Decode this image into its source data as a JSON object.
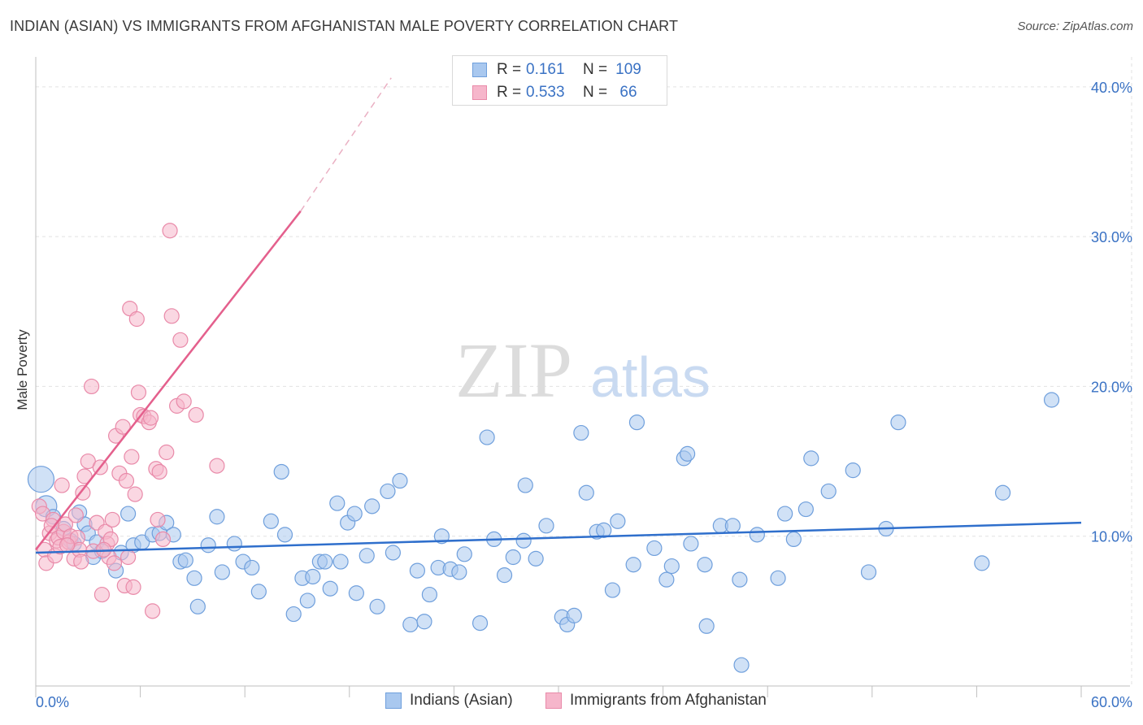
{
  "title": "INDIAN (ASIAN) VS IMMIGRANTS FROM AFGHANISTAN MALE POVERTY CORRELATION CHART",
  "source": "Source: ZipAtlas.com",
  "watermark": {
    "zip": "ZIP",
    "atlas": "atlas"
  },
  "legend_top": [
    {
      "r_label": "R =",
      "r_value": "0.161",
      "n_label": "N =",
      "n_value": "109"
    },
    {
      "r_label": "R =",
      "r_value": "0.533",
      "n_label": "N =",
      "n_value": "66"
    }
  ],
  "colors": {
    "blue_fill": "#a9c8ef",
    "blue_stroke": "#6f9fdc",
    "blue_line": "#2f6fcc",
    "pink_fill": "#f6b6cb",
    "pink_stroke": "#e98aa9",
    "pink_line": "#e4608d",
    "axis_text": "#3a72c4",
    "grid": "#e2e2e2"
  },
  "chart_data": {
    "type": "scatter",
    "title": "INDIAN (ASIAN) VS IMMIGRANTS FROM AFGHANISTAN MALE POVERTY CORRELATION CHART",
    "xlabel": "",
    "ylabel": "Male Poverty",
    "xlim": [
      0,
      60
    ],
    "ylim": [
      0,
      42
    ],
    "x_tick_labels": [
      "0.0%",
      "60.0%"
    ],
    "y_ticks": [
      10,
      20,
      30,
      40
    ],
    "y_tick_labels": [
      "10.0%",
      "20.0%",
      "30.0%",
      "40.0%"
    ],
    "grid": true,
    "legend_placement": "top-center",
    "series": [
      {
        "name": "Indians (Asian)",
        "color": "blue",
        "trend": {
          "x": [
            0,
            60
          ],
          "y": [
            8.9,
            10.9
          ],
          "dashed_extension": false
        },
        "points": [
          [
            0.3,
            13.8
          ],
          [
            0.6,
            12
          ],
          [
            1,
            11.3
          ],
          [
            1.6,
            10.5
          ],
          [
            2,
            9.7
          ],
          [
            2.2,
            9.5
          ],
          [
            2.5,
            11.6
          ],
          [
            2.8,
            10.8
          ],
          [
            3,
            10.2
          ],
          [
            3.3,
            8.6
          ],
          [
            3.5,
            9.6
          ],
          [
            3.8,
            9
          ],
          [
            4.6,
            7.7
          ],
          [
            4.9,
            8.9
          ],
          [
            5.3,
            11.5
          ],
          [
            5.6,
            9.4
          ],
          [
            6.1,
            9.6
          ],
          [
            6.7,
            10.1
          ],
          [
            7.1,
            10.2
          ],
          [
            7.5,
            10.9
          ],
          [
            7.9,
            10.1
          ],
          [
            8.3,
            8.3
          ],
          [
            8.6,
            8.4
          ],
          [
            9.1,
            7.2
          ],
          [
            9.3,
            5.3
          ],
          [
            9.9,
            9.4
          ],
          [
            10.4,
            11.3
          ],
          [
            10.7,
            7.6
          ],
          [
            11.4,
            9.5
          ],
          [
            11.9,
            8.3
          ],
          [
            12.4,
            7.9
          ],
          [
            12.8,
            6.3
          ],
          [
            13.5,
            11
          ],
          [
            14.1,
            14.3
          ],
          [
            14.3,
            10.1
          ],
          [
            14.8,
            4.8
          ],
          [
            15.3,
            7.2
          ],
          [
            15.6,
            5.7
          ],
          [
            15.9,
            7.3
          ],
          [
            16.3,
            8.3
          ],
          [
            16.6,
            8.3
          ],
          [
            16.9,
            6.5
          ],
          [
            17.3,
            12.2
          ],
          [
            17.5,
            8.3
          ],
          [
            17.9,
            10.9
          ],
          [
            18.3,
            11.5
          ],
          [
            18.4,
            6.2
          ],
          [
            19.0,
            8.7
          ],
          [
            19.3,
            12
          ],
          [
            19.6,
            5.3
          ],
          [
            20.2,
            13
          ],
          [
            20.5,
            8.9
          ],
          [
            20.9,
            13.7
          ],
          [
            21.5,
            4.1
          ],
          [
            21.9,
            7.7
          ],
          [
            22.3,
            4.3
          ],
          [
            22.6,
            6.1
          ],
          [
            23.1,
            7.9
          ],
          [
            23.3,
            10
          ],
          [
            23.8,
            7.8
          ],
          [
            24.3,
            7.6
          ],
          [
            24.6,
            8.8
          ],
          [
            25.5,
            4.2
          ],
          [
            25.9,
            16.6
          ],
          [
            26.3,
            9.8
          ],
          [
            26.9,
            7.4
          ],
          [
            27.4,
            8.6
          ],
          [
            28,
            9.7
          ],
          [
            28.1,
            13.4
          ],
          [
            28.7,
            8.5
          ],
          [
            29.3,
            10.7
          ],
          [
            30.2,
            4.6
          ],
          [
            30.5,
            4.1
          ],
          [
            30.9,
            4.7
          ],
          [
            31.3,
            16.9
          ],
          [
            31.6,
            12.9
          ],
          [
            32.2,
            10.3
          ],
          [
            32.6,
            10.4
          ],
          [
            33.1,
            6.4
          ],
          [
            33.4,
            11
          ],
          [
            34.3,
            8.1
          ],
          [
            34.5,
            17.6
          ],
          [
            35.5,
            9.2
          ],
          [
            36.2,
            7.1
          ],
          [
            36.5,
            8
          ],
          [
            37.2,
            15.2
          ],
          [
            37.4,
            15.5
          ],
          [
            37.6,
            9.5
          ],
          [
            38.4,
            8.1
          ],
          [
            38.5,
            4
          ],
          [
            39.3,
            10.7
          ],
          [
            40,
            10.7
          ],
          [
            40.4,
            7.1
          ],
          [
            40.5,
            1.4
          ],
          [
            41.4,
            10.1
          ],
          [
            42.6,
            7.2
          ],
          [
            43,
            11.5
          ],
          [
            43.5,
            9.8
          ],
          [
            44.2,
            11.8
          ],
          [
            44.5,
            15.2
          ],
          [
            45.5,
            13
          ],
          [
            46.9,
            14.4
          ],
          [
            47.8,
            7.6
          ],
          [
            48.8,
            10.5
          ],
          [
            49.5,
            17.6
          ],
          [
            54.3,
            8.2
          ],
          [
            55.5,
            12.9
          ],
          [
            58.3,
            19.1
          ]
        ]
      },
      {
        "name": "Immigrants from Afghanistan",
        "color": "pink",
        "trend": {
          "x": [
            0,
            15.2
          ],
          "y": [
            9.1,
            31.7
          ],
          "dashed_to": [
            20.4,
            40.6
          ]
        },
        "points": [
          [
            0.2,
            12
          ],
          [
            0.4,
            11.5
          ],
          [
            0.5,
            9.1
          ],
          [
            0.6,
            8.2
          ],
          [
            0.8,
            10.2
          ],
          [
            1,
            11.1
          ],
          [
            1.1,
            8.7
          ],
          [
            1.2,
            9.7
          ],
          [
            1.3,
            9.9
          ],
          [
            1.4,
            9.3
          ],
          [
            1.6,
            10.3
          ],
          [
            1.7,
            10.8
          ],
          [
            1.9,
            9.6
          ],
          [
            2,
            10
          ],
          [
            2.2,
            8.5
          ],
          [
            2.4,
            9.9
          ],
          [
            2.5,
            9.1
          ],
          [
            2.7,
            12.9
          ],
          [
            2.8,
            14
          ],
          [
            3,
            15
          ],
          [
            3.2,
            20
          ],
          [
            3.3,
            9
          ],
          [
            3.5,
            10.9
          ],
          [
            3.7,
            14.6
          ],
          [
            3.8,
            6.1
          ],
          [
            4,
            10.3
          ],
          [
            4.1,
            9.5
          ],
          [
            4.2,
            8.6
          ],
          [
            4.3,
            9.8
          ],
          [
            4.4,
            11.1
          ],
          [
            4.5,
            8.2
          ],
          [
            4.6,
            16.7
          ],
          [
            4.8,
            14.2
          ],
          [
            5,
            17.3
          ],
          [
            5.1,
            6.7
          ],
          [
            5.2,
            13.7
          ],
          [
            5.3,
            8.6
          ],
          [
            5.4,
            25.2
          ],
          [
            5.5,
            15.3
          ],
          [
            5.6,
            6.6
          ],
          [
            5.7,
            12.8
          ],
          [
            5.8,
            24.5
          ],
          [
            5.9,
            19.6
          ],
          [
            6,
            18.1
          ],
          [
            6.2,
            18
          ],
          [
            6.5,
            17.6
          ],
          [
            6.6,
            17.9
          ],
          [
            6.7,
            5
          ],
          [
            6.9,
            14.5
          ],
          [
            7.0,
            11.1
          ],
          [
            7.1,
            14.3
          ],
          [
            7.3,
            9.8
          ],
          [
            7.5,
            15.6
          ],
          [
            7.7,
            30.4
          ],
          [
            7.8,
            24.7
          ],
          [
            8.1,
            18.7
          ],
          [
            8.3,
            23.1
          ],
          [
            8.5,
            19
          ],
          [
            9.2,
            18.1
          ],
          [
            10.4,
            14.7
          ],
          [
            1.5,
            13.4
          ],
          [
            2.3,
            11.4
          ],
          [
            0.9,
            10.7
          ],
          [
            1.8,
            9.4
          ],
          [
            3.9,
            9.1
          ],
          [
            2.6,
            8.3
          ]
        ]
      }
    ]
  },
  "legend_bottom": [
    "Indians (Asian)",
    "Immigrants from Afghanistan"
  ]
}
